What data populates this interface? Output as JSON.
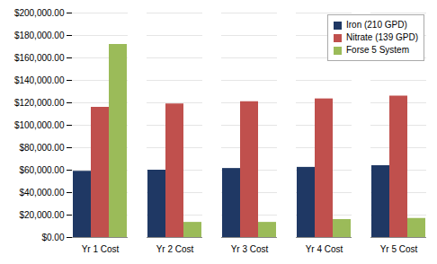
{
  "chart_data": {
    "type": "bar",
    "categories": [
      "Yr 1 Cost",
      "Yr 2 Cost",
      "Yr 3 Cost",
      "Yr 4 Cost",
      "Yr 5 Cost"
    ],
    "series": [
      {
        "name": "Iron (210 GPD)",
        "color": "#1F3864",
        "values": [
          59000,
          60000,
          61500,
          62500,
          64000
        ]
      },
      {
        "name": "Nitrate (139 GPD)",
        "color": "#C0504D",
        "values": [
          116000,
          119000,
          121000,
          123500,
          126000
        ]
      },
      {
        "name": "Forse 5 System",
        "color": "#9BBB59",
        "values": [
          172000,
          13500,
          13500,
          16000,
          17000
        ]
      }
    ],
    "ylim": [
      0,
      200000
    ],
    "yticks": [
      {
        "value": 0,
        "label": "$0.00"
      },
      {
        "value": 20000,
        "label": "$20,000.00"
      },
      {
        "value": 40000,
        "label": "$40,000.00"
      },
      {
        "value": 60000,
        "label": "$60,000.00"
      },
      {
        "value": 80000,
        "label": "$80,000.00"
      },
      {
        "value": 100000,
        "label": "$100,000.00"
      },
      {
        "value": 120000,
        "label": "$120,000.00"
      },
      {
        "value": 140000,
        "label": "$140,000.00"
      },
      {
        "value": 160000,
        "label": "$160,000.00"
      },
      {
        "value": 180000,
        "label": "$180,000.00"
      },
      {
        "value": 200000,
        "label": "$200,000.00"
      }
    ],
    "grid": true,
    "legend": "upper right"
  }
}
